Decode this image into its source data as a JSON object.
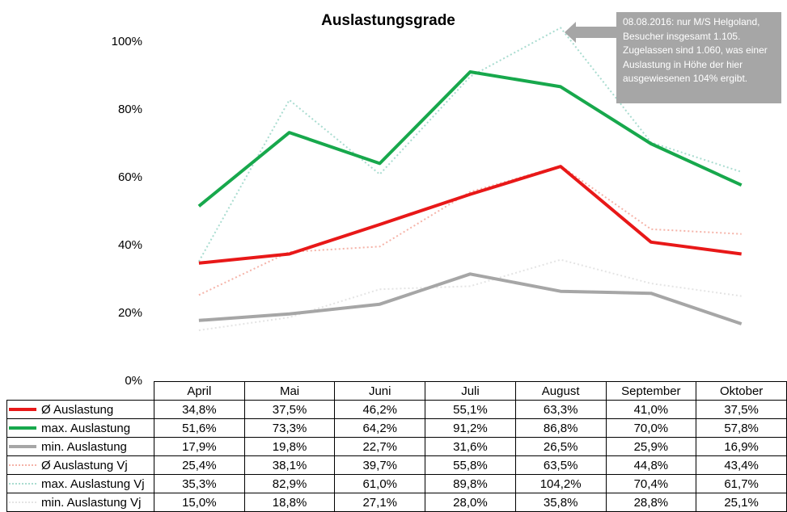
{
  "chart_data": {
    "type": "line",
    "title": "Auslastungsgrade",
    "categories": [
      "April",
      "Mai",
      "Juni",
      "Juli",
      "August",
      "September",
      "Oktober"
    ],
    "y_ticks": [
      "0%",
      "20%",
      "40%",
      "60%",
      "80%",
      "100%"
    ],
    "ylim": [
      0,
      110
    ],
    "grid": false,
    "series": [
      {
        "name": "Ø Auslastung",
        "values": [
          34.8,
          37.5,
          46.2,
          55.1,
          63.3,
          41.0,
          37.5
        ],
        "labels": [
          "34,8%",
          "37,5%",
          "46,2%",
          "55,1%",
          "63,3%",
          "41,0%",
          "37,5%"
        ],
        "color": "#e81818",
        "style": "solid"
      },
      {
        "name": "max. Auslastung",
        "values": [
          51.6,
          73.3,
          64.2,
          91.2,
          86.8,
          70.0,
          57.8
        ],
        "labels": [
          "51,6%",
          "73,3%",
          "64,2%",
          "91,2%",
          "86,8%",
          "70,0%",
          "57,8%"
        ],
        "color": "#17a84c",
        "style": "solid"
      },
      {
        "name": "min. Auslastung",
        "values": [
          17.9,
          19.8,
          22.7,
          31.6,
          26.5,
          25.9,
          16.9
        ],
        "labels": [
          "17,9%",
          "19,8%",
          "22,7%",
          "31,6%",
          "26,5%",
          "25,9%",
          "16,9%"
        ],
        "color": "#a6a6a6",
        "style": "solid"
      },
      {
        "name": "Ø Auslastung Vj",
        "values": [
          25.4,
          38.1,
          39.7,
          55.8,
          63.5,
          44.8,
          43.4
        ],
        "labels": [
          "25,4%",
          "38,1%",
          "39,7%",
          "55,8%",
          "63,5%",
          "44,8%",
          "43,4%"
        ],
        "color": "#f5b3a8",
        "style": "dotted"
      },
      {
        "name": "max. Auslastung Vj",
        "values": [
          35.3,
          82.9,
          61.0,
          89.8,
          104.2,
          70.4,
          61.7
        ],
        "labels": [
          "35,3%",
          "82,9%",
          "61,0%",
          "89,8%",
          "104,2%",
          "70,4%",
          "61,7%"
        ],
        "color": "#a9dcd0",
        "style": "dotted"
      },
      {
        "name": "min. Auslastung Vj",
        "values": [
          15.0,
          18.8,
          27.1,
          28.0,
          35.8,
          28.8,
          25.1
        ],
        "labels": [
          "15,0%",
          "18,8%",
          "27,1%",
          "28,0%",
          "35,8%",
          "28,8%",
          "25,1%"
        ],
        "color": "#e4e4e4",
        "style": "dotted"
      }
    ],
    "annotation": "08.08.2016: nur M/S Helgoland, Besucher insgesamt 1.105. Zugelassen sind 1.060, was einer Auslastung in Höhe der hier ausgewiesenen 104% ergibt.",
    "annotation_color": "#a6a6a6"
  }
}
